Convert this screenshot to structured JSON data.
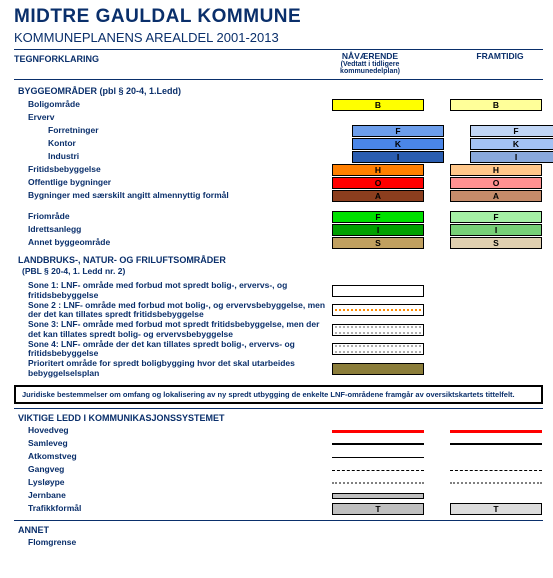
{
  "header": {
    "title": "MIDTRE GAULDAL KOMMUNE",
    "subtitle": "KOMMUNEPLANENS AREALDEL 2001-2013",
    "legend_label": "TEGNFORKLARING",
    "col_current": "NÅVÆRENDE",
    "col_current_sub": "(Vedtatt i tidligere kommunedelplan)",
    "col_future": "FRAMTIDIG"
  },
  "bygge": {
    "title": "BYGGEOMRÅDER (pbl § 20-4, 1.Ledd)",
    "items": [
      {
        "label": "Boligområde",
        "indent": 0,
        "letter": "B",
        "cur": {
          "fill": "#ffff00"
        },
        "fut": {
          "fill": "#ffff99"
        }
      },
      {
        "label": "Erverv",
        "indent": 0
      },
      {
        "label": "Forretninger",
        "indent": 1,
        "letter": "F",
        "cur": {
          "fill": "#6d9eeb"
        },
        "fut": {
          "fill": "#c0d5f5"
        }
      },
      {
        "label": "Kontor",
        "indent": 1,
        "letter": "K",
        "cur": {
          "fill": "#4a86e8"
        },
        "fut": {
          "fill": "#a4c2f4"
        }
      },
      {
        "label": "Industri",
        "indent": 1,
        "letter": "I",
        "cur": {
          "fill": "#2a5db0"
        },
        "fut": {
          "fill": "#8aa9dc"
        }
      },
      {
        "label": "Fritidsbebyggelse",
        "indent": 0,
        "letter": "H",
        "cur": {
          "fill": "#ff7f00"
        },
        "fut": {
          "fill": "#ffc78a"
        }
      },
      {
        "label": "Offentlige bygninger",
        "indent": 0,
        "letter": "O",
        "cur": {
          "fill": "#ff0000"
        },
        "fut": {
          "fill": "#ff9191"
        }
      },
      {
        "label": "Bygninger med særskilt angitt almennyttig formål",
        "indent": 0,
        "letter": "A",
        "cur": {
          "fill": "#8b3e1e"
        },
        "fut": {
          "fill": "#c58b6a"
        }
      }
    ],
    "items2": [
      {
        "label": "Friområde",
        "indent": 0,
        "letter": "F",
        "cur": {
          "fill": "#00e000"
        },
        "fut": {
          "fill": "#a5f0a5"
        }
      },
      {
        "label": "Idrettsanlegg",
        "indent": 0,
        "letter": "I",
        "cur": {
          "fill": "#00a000"
        },
        "fut": {
          "fill": "#77d077"
        }
      },
      {
        "label": "Annet byggeområde",
        "indent": 0,
        "letter": "S",
        "cur": {
          "fill": "#c0a060"
        },
        "fut": {
          "fill": "#e0d0b0"
        }
      }
    ]
  },
  "lnf": {
    "title": "LANDBRUKS-, NATUR- OG FRILUFTSOMRÅDER",
    "subtitle": "(PBL § 20-4, 1. Ledd nr. 2)",
    "items": [
      {
        "label": "Sone 1: LNF- område med forbud mot spredt bolig-, ervervs-, og fritidsbebyggelse",
        "cur": {
          "box": true,
          "fill": "#ffffff"
        }
      },
      {
        "label": "Sone 2 : LNF- område med forbud mot bolig-, og ervervsbebyggelse, men der det kan tillates spredt fritidsbebyggelse",
        "cur": {
          "box": true,
          "fill": "#ffffff",
          "pattern": "dotmid",
          "dotcol": "#ff8c00"
        }
      },
      {
        "label": "Sone 3: LNF- område med forbud mot spredt fritidsbebyggelse, men der det kan tillates spredt bolig- og ervervsbebyggelse",
        "cur": {
          "box": true,
          "fill": "#ffffff",
          "pattern": "dotedge",
          "dotcol": "#b0b0b0"
        }
      },
      {
        "label": "Sone 4: LNF- område der det kan tillates spredt bolig-, ervervs- og fritidsbebyggelse",
        "cur": {
          "box": true,
          "fill": "#ffffff",
          "pattern": "dotedge",
          "dotcol": "#b0b0b0"
        }
      },
      {
        "label": "Prioritert område for spredt boligbygging hvor det skal utarbeides bebyggelselsplan",
        "cur": {
          "box": true,
          "fill": "#8b7d3a"
        }
      }
    ]
  },
  "notice": "Juridiske bestemmelser om omfang og lokalisering av ny spredt utbygging de enkelte LNF-områdene framgår av oversiktskartets tittelfelt.",
  "komm": {
    "title": "VIKTIGE LEDD I KOMMUNIKASJONSSYSTEMET",
    "items": [
      {
        "label": "Hovedveg",
        "cur": {
          "line": true,
          "color": "#ff0000",
          "width": 3,
          "style": "solid"
        },
        "fut": {
          "line": true,
          "color": "#ff0000",
          "width": 3,
          "style": "solid"
        }
      },
      {
        "label": "Samleveg",
        "cur": {
          "line": true,
          "color": "#000000",
          "width": 2.5,
          "style": "solid"
        },
        "fut": {
          "line": true,
          "color": "#000000",
          "width": 2.5,
          "style": "solid"
        }
      },
      {
        "label": "Atkomstveg",
        "cur": {
          "line": true,
          "color": "#000000",
          "width": 1.5,
          "style": "solid"
        }
      },
      {
        "label": "Gangveg",
        "cur": {
          "line": true,
          "color": "#000000",
          "width": 1.5,
          "style": "dashed"
        },
        "fut": {
          "line": true,
          "color": "#000000",
          "width": 1.5,
          "style": "dashed"
        }
      },
      {
        "label": "Lysløype",
        "cur": {
          "line": true,
          "color": "#808080",
          "width": 2,
          "style": "dotted"
        },
        "fut": {
          "line": true,
          "color": "#808080",
          "width": 2,
          "style": "dotted"
        }
      },
      {
        "label": "Jernbane",
        "cur": {
          "box": true,
          "fill": "#bfbfbf",
          "h": 6
        }
      },
      {
        "label": "Trafikkformål",
        "letter": "T",
        "cur": {
          "box": true,
          "fill": "#bfbfbf"
        },
        "fut": {
          "box": true,
          "fill": "#dcdcdc"
        }
      }
    ]
  },
  "annet": {
    "title": "ANNET",
    "items": [
      {
        "label": "Flomgrense"
      }
    ]
  }
}
